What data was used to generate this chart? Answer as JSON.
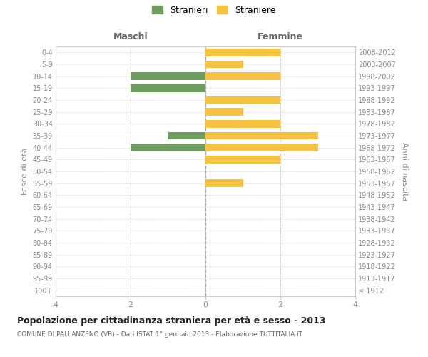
{
  "age_groups": [
    "100+",
    "95-99",
    "90-94",
    "85-89",
    "80-84",
    "75-79",
    "70-74",
    "65-69",
    "60-64",
    "55-59",
    "50-54",
    "45-49",
    "40-44",
    "35-39",
    "30-34",
    "25-29",
    "20-24",
    "15-19",
    "10-14",
    "5-9",
    "0-4"
  ],
  "birth_years": [
    "≤ 1912",
    "1913-1917",
    "1918-1922",
    "1923-1927",
    "1928-1932",
    "1933-1937",
    "1938-1942",
    "1943-1947",
    "1948-1952",
    "1953-1957",
    "1958-1962",
    "1963-1967",
    "1968-1972",
    "1973-1977",
    "1978-1982",
    "1983-1987",
    "1988-1992",
    "1993-1997",
    "1998-2002",
    "2003-2007",
    "2008-2012"
  ],
  "maschi": [
    0,
    0,
    0,
    0,
    0,
    0,
    0,
    0,
    0,
    0,
    0,
    0,
    2,
    1,
    0,
    0,
    0,
    2,
    2,
    0,
    0
  ],
  "femmine": [
    0,
    0,
    0,
    0,
    0,
    0,
    0,
    0,
    0,
    1,
    0,
    2,
    3,
    3,
    2,
    1,
    2,
    0,
    2,
    1,
    2
  ],
  "color_maschi": "#6e9e5f",
  "color_femmine": "#f5c242",
  "title": "Popolazione per cittadinanza straniera per età e sesso - 2013",
  "subtitle": "COMUNE DI PALLANZENO (VB) - Dati ISTAT 1° gennaio 2013 - Elaborazione TUTTITALIA.IT",
  "label_maschi": "Stranieri",
  "label_femmine": "Straniere",
  "xlabel_left": "Maschi",
  "xlabel_right": "Femmine",
  "ylabel_left": "Fasce di età",
  "ylabel_right": "Anni di nascita",
  "xlim": 4,
  "background_color": "#ffffff",
  "grid_color": "#cccccc",
  "spine_color": "#cccccc"
}
